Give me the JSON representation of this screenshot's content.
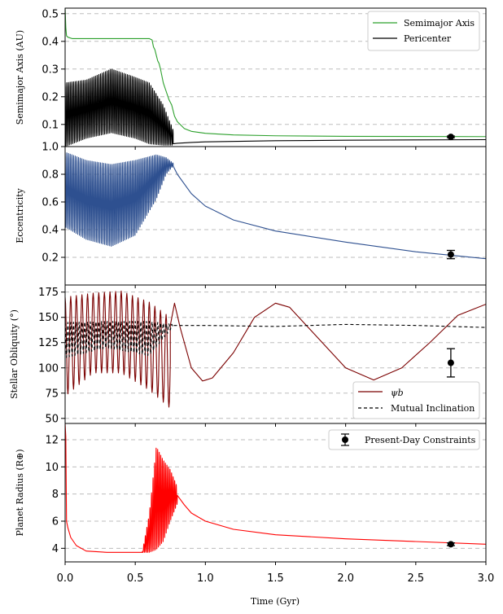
{
  "chart_data": {
    "type": "line",
    "xlabel": "Time (Gyr)",
    "xlim": [
      0,
      3
    ],
    "xticks": [
      0.0,
      0.5,
      1.0,
      1.5,
      2.0,
      2.5,
      3.0
    ],
    "xtick_labels": [
      "0.0",
      "0.5",
      "1.0",
      "1.5",
      "2.0",
      "2.5",
      "3.0"
    ],
    "grid": "horizontal dashed",
    "panels": [
      {
        "id": "semimajor",
        "ylabel": "Semimajor Axis (AU)",
        "ylim": [
          0.02,
          0.52
        ],
        "yticks": [
          0.1,
          0.2,
          0.3,
          0.4,
          0.5
        ],
        "ytick_labels": [
          "0.1",
          "0.2",
          "0.3",
          "0.4",
          "0.5"
        ],
        "legend": {
          "position": "top-right",
          "entries": [
            "Semimajor Axis",
            "Pericenter"
          ]
        },
        "series": [
          {
            "name": "Semimajor Axis",
            "color": "#2ca02c",
            "style": "solid",
            "points": [
              [
                0,
                0.52
              ],
              [
                0.005,
                0.45
              ],
              [
                0.01,
                0.42
              ],
              [
                0.02,
                0.415
              ],
              [
                0.05,
                0.41
              ],
              [
                0.3,
                0.41
              ],
              [
                0.6,
                0.41
              ],
              [
                0.62,
                0.405
              ],
              [
                0.63,
                0.38
              ],
              [
                0.64,
                0.37
              ],
              [
                0.66,
                0.33
              ],
              [
                0.67,
                0.32
              ],
              [
                0.68,
                0.3
              ],
              [
                0.7,
                0.25
              ],
              [
                0.72,
                0.22
              ],
              [
                0.74,
                0.19
              ],
              [
                0.76,
                0.17
              ],
              [
                0.78,
                0.13
              ],
              [
                0.8,
                0.11
              ],
              [
                0.85,
                0.085
              ],
              [
                0.9,
                0.075
              ],
              [
                1.0,
                0.068
              ],
              [
                1.2,
                0.062
              ],
              [
                1.5,
                0.059
              ],
              [
                2.0,
                0.057
              ],
              [
                2.5,
                0.0565
              ],
              [
                3.0,
                0.056
              ]
            ]
          },
          {
            "name": "Pericenter",
            "color": "#000000",
            "style": "solid",
            "oscillation": {
              "t_start": 0.0,
              "t_end": 0.77,
              "period": 0.012,
              "upper": [
                [
                  0,
                  0.25
                ],
                [
                  0.15,
                  0.26
                ],
                [
                  0.33,
                  0.3
                ],
                [
                  0.5,
                  0.27
                ],
                [
                  0.6,
                  0.25
                ],
                [
                  0.7,
                  0.17
                ],
                [
                  0.77,
                  0.08
                ]
              ],
              "lower": [
                [
                  0,
                  0.02
                ],
                [
                  0.15,
                  0.05
                ],
                [
                  0.33,
                  0.07
                ],
                [
                  0.5,
                  0.05
                ],
                [
                  0.6,
                  0.03
                ],
                [
                  0.7,
                  0.025
                ],
                [
                  0.77,
                  0.025
                ]
              ]
            },
            "points": [
              [
                0.77,
                0.03
              ],
              [
                0.8,
                0.032
              ],
              [
                0.9,
                0.035
              ],
              [
                1.0,
                0.037
              ],
              [
                1.5,
                0.041
              ],
              [
                2.0,
                0.043
              ],
              [
                2.5,
                0.044
              ],
              [
                3.0,
                0.045
              ]
            ]
          }
        ],
        "constraint": {
          "x": 2.75,
          "y": 0.055,
          "err": 0.003
        }
      },
      {
        "id": "eccentricity",
        "ylabel": "Eccentricity",
        "ylim": [
          0.0,
          1.0
        ],
        "yticks": [
          0.2,
          0.4,
          0.6,
          0.8,
          1.0
        ],
        "ytick_labels": [
          "0.2",
          "0.4",
          "0.6",
          "0.8",
          "1.0"
        ],
        "series": [
          {
            "name": "Eccentricity",
            "color": "#2e5090",
            "style": "solid",
            "oscillation": {
              "t_start": 0.0,
              "t_end": 0.77,
              "period": 0.012,
              "upper": [
                [
                  0,
                  0.96
                ],
                [
                  0.15,
                  0.9
                ],
                [
                  0.33,
                  0.87
                ],
                [
                  0.5,
                  0.9
                ],
                [
                  0.65,
                  0.94
                ],
                [
                  0.72,
                  0.92
                ],
                [
                  0.77,
                  0.88
                ]
              ],
              "lower": [
                [
                  0,
                  0.42
                ],
                [
                  0.15,
                  0.33
                ],
                [
                  0.33,
                  0.28
                ],
                [
                  0.5,
                  0.36
                ],
                [
                  0.65,
                  0.62
                ],
                [
                  0.72,
                  0.8
                ],
                [
                  0.77,
                  0.86
                ]
              ]
            },
            "points": [
              [
                0.77,
                0.86
              ],
              [
                0.8,
                0.8
              ],
              [
                0.9,
                0.66
              ],
              [
                1.0,
                0.57
              ],
              [
                1.2,
                0.47
              ],
              [
                1.5,
                0.39
              ],
              [
                2.0,
                0.31
              ],
              [
                2.5,
                0.24
              ],
              [
                3.0,
                0.19
              ]
            ]
          }
        ],
        "constraint": {
          "x": 2.75,
          "y": 0.22,
          "err": 0.03
        }
      },
      {
        "id": "obliquity",
        "ylabel": "Stellar Obliquity (°)",
        "ylim": [
          45,
          182
        ],
        "yticks": [
          50,
          75,
          100,
          125,
          150,
          175
        ],
        "ytick_labels": [
          "50",
          "75",
          "100",
          "125",
          "150",
          "175"
        ],
        "legend": {
          "position": "bottom-right",
          "entries": [
            "ψb",
            "Mutual Inclination"
          ]
        },
        "series": [
          {
            "name": "ψb",
            "color": "#7b0000",
            "style": "solid",
            "oscillation": {
              "t_start": 0.0,
              "t_end": 0.75,
              "period": 0.04,
              "upper": [
                [
                  0,
                  170
                ],
                [
                  0.2,
                  174
                ],
                [
                  0.4,
                  176
                ],
                [
                  0.6,
                  165
                ],
                [
                  0.75,
                  150
                ]
              ],
              "lower": [
                [
                  0,
                  72
                ],
                [
                  0.2,
                  95
                ],
                [
                  0.4,
                  95
                ],
                [
                  0.6,
                  78
                ],
                [
                  0.75,
                  60
                ]
              ]
            },
            "points": [
              [
                0.75,
                142
              ],
              [
                0.78,
                164
              ],
              [
                0.82,
                140
              ],
              [
                0.9,
                100
              ],
              [
                0.98,
                87
              ],
              [
                1.05,
                90
              ],
              [
                1.2,
                115
              ],
              [
                1.35,
                150
              ],
              [
                1.5,
                164
              ],
              [
                1.6,
                160
              ],
              [
                1.8,
                130
              ],
              [
                2.0,
                100
              ],
              [
                2.2,
                88
              ],
              [
                2.4,
                100
              ],
              [
                2.6,
                125
              ],
              [
                2.8,
                152
              ],
              [
                3.0,
                163
              ]
            ]
          },
          {
            "name": "Mutual Inclination",
            "color": "#000000",
            "style": "dashed",
            "oscillation": {
              "t_start": 0.0,
              "t_end": 0.77,
              "period": 0.02,
              "upper": [
                [
                  0,
                  145
                ],
                [
                  0.3,
                  146
                ],
                [
                  0.6,
                  146
                ],
                [
                  0.77,
                  143
                ]
              ],
              "lower": [
                [
                  0,
                  110
                ],
                [
                  0.3,
                  120
                ],
                [
                  0.6,
                  112
                ],
                [
                  0.77,
                  141
                ]
              ]
            },
            "points": [
              [
                0.77,
                142
              ],
              [
                1.0,
                142
              ],
              [
                1.5,
                141
              ],
              [
                2.0,
                143
              ],
              [
                2.5,
                142
              ],
              [
                3.0,
                140
              ]
            ]
          }
        ],
        "constraint": {
          "x": 2.75,
          "y": 105,
          "err": 14
        }
      },
      {
        "id": "radius",
        "ylabel": "Planet Radius (R⊕)",
        "ylim": [
          3.0,
          13.2
        ],
        "yticks": [
          4,
          6,
          8,
          10,
          12
        ],
        "ytick_labels": [
          "4",
          "6",
          "8",
          "10",
          "12"
        ],
        "legend": {
          "position": "top-right",
          "entries": [
            "Present-Day Constraints"
          ]
        },
        "series": [
          {
            "name": "Planet Radius",
            "color": "#ff0000",
            "style": "solid",
            "early_spike": [
              [
                0,
                13.2
              ],
              [
                0.005,
                12.2
              ],
              [
                0.01,
                6
              ],
              [
                0.02,
                5.5
              ],
              [
                0.04,
                4.8
              ],
              [
                0.08,
                4.2
              ],
              [
                0.15,
                3.8
              ],
              [
                0.3,
                3.7
              ],
              [
                0.55,
                3.7
              ]
            ],
            "oscillation": {
              "t_start": 0.55,
              "t_end": 0.8,
              "period": 0.011,
              "upper": [
                [
                  0.55,
                  3.7
                ],
                [
                  0.6,
                  6.5
                ],
                [
                  0.65,
                  11.5
                ],
                [
                  0.7,
                  10.5
                ],
                [
                  0.75,
                  9.8
                ],
                [
                  0.8,
                  8.5
                ]
              ],
              "lower": [
                [
                  0.55,
                  3.7
                ],
                [
                  0.6,
                  3.7
                ],
                [
                  0.65,
                  3.9
                ],
                [
                  0.7,
                  4.5
                ],
                [
                  0.75,
                  6
                ],
                [
                  0.8,
                  7.3
                ]
              ]
            },
            "points": [
              [
                0.8,
                7.9
              ],
              [
                0.85,
                7.2
              ],
              [
                0.9,
                6.6
              ],
              [
                1.0,
                6.0
              ],
              [
                1.2,
                5.4
              ],
              [
                1.5,
                5.0
              ],
              [
                2.0,
                4.7
              ],
              [
                2.5,
                4.5
              ],
              [
                3.0,
                4.3
              ]
            ]
          }
        ],
        "constraint": {
          "x": 2.75,
          "y": 4.3,
          "err": 0.1
        }
      }
    ]
  }
}
